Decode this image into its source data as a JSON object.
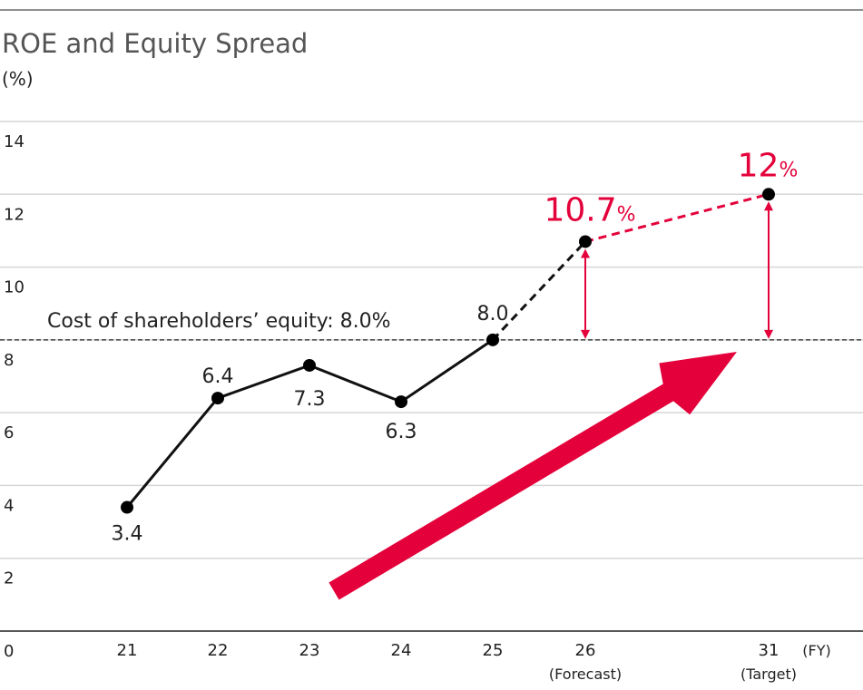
{
  "chart_data": {
    "type": "line",
    "title": "ROE and Equity Spread",
    "ylabel": "(%)",
    "x_axis_unit": "(FY)",
    "ylim": [
      0,
      14
    ],
    "y_ticks": [
      "0",
      "2",
      "4",
      "6",
      "8",
      "10",
      "12",
      "14"
    ],
    "categories": [
      {
        "label": "21",
        "sub": ""
      },
      {
        "label": "22",
        "sub": ""
      },
      {
        "label": "23",
        "sub": ""
      },
      {
        "label": "24",
        "sub": ""
      },
      {
        "label": "25",
        "sub": ""
      },
      {
        "label": "26",
        "sub": "(Forecast)"
      },
      {
        "label": "31",
        "sub": "(Target)"
      }
    ],
    "series": [
      {
        "name": "ROE",
        "values": [
          3.4,
          6.4,
          7.3,
          6.3,
          8.0,
          10.7,
          12
        ],
        "labels": [
          {
            "num": "3.4",
            "pct": ""
          },
          {
            "num": "6.4",
            "pct": ""
          },
          {
            "num": "7.3",
            "pct": ""
          },
          {
            "num": "6.3",
            "pct": ""
          },
          {
            "num": "8.0",
            "pct": ""
          },
          {
            "num": "10.7",
            "pct": "%"
          },
          {
            "num": "12",
            "pct": "%"
          }
        ]
      }
    ],
    "reference_line": {
      "value": 8.0,
      "label": "Cost of shareholders’ equity: 8.0%"
    },
    "colors": {
      "line": "#111111",
      "accent": "#e4003a",
      "grid": "#d6d6d6",
      "text": "#222222"
    }
  }
}
